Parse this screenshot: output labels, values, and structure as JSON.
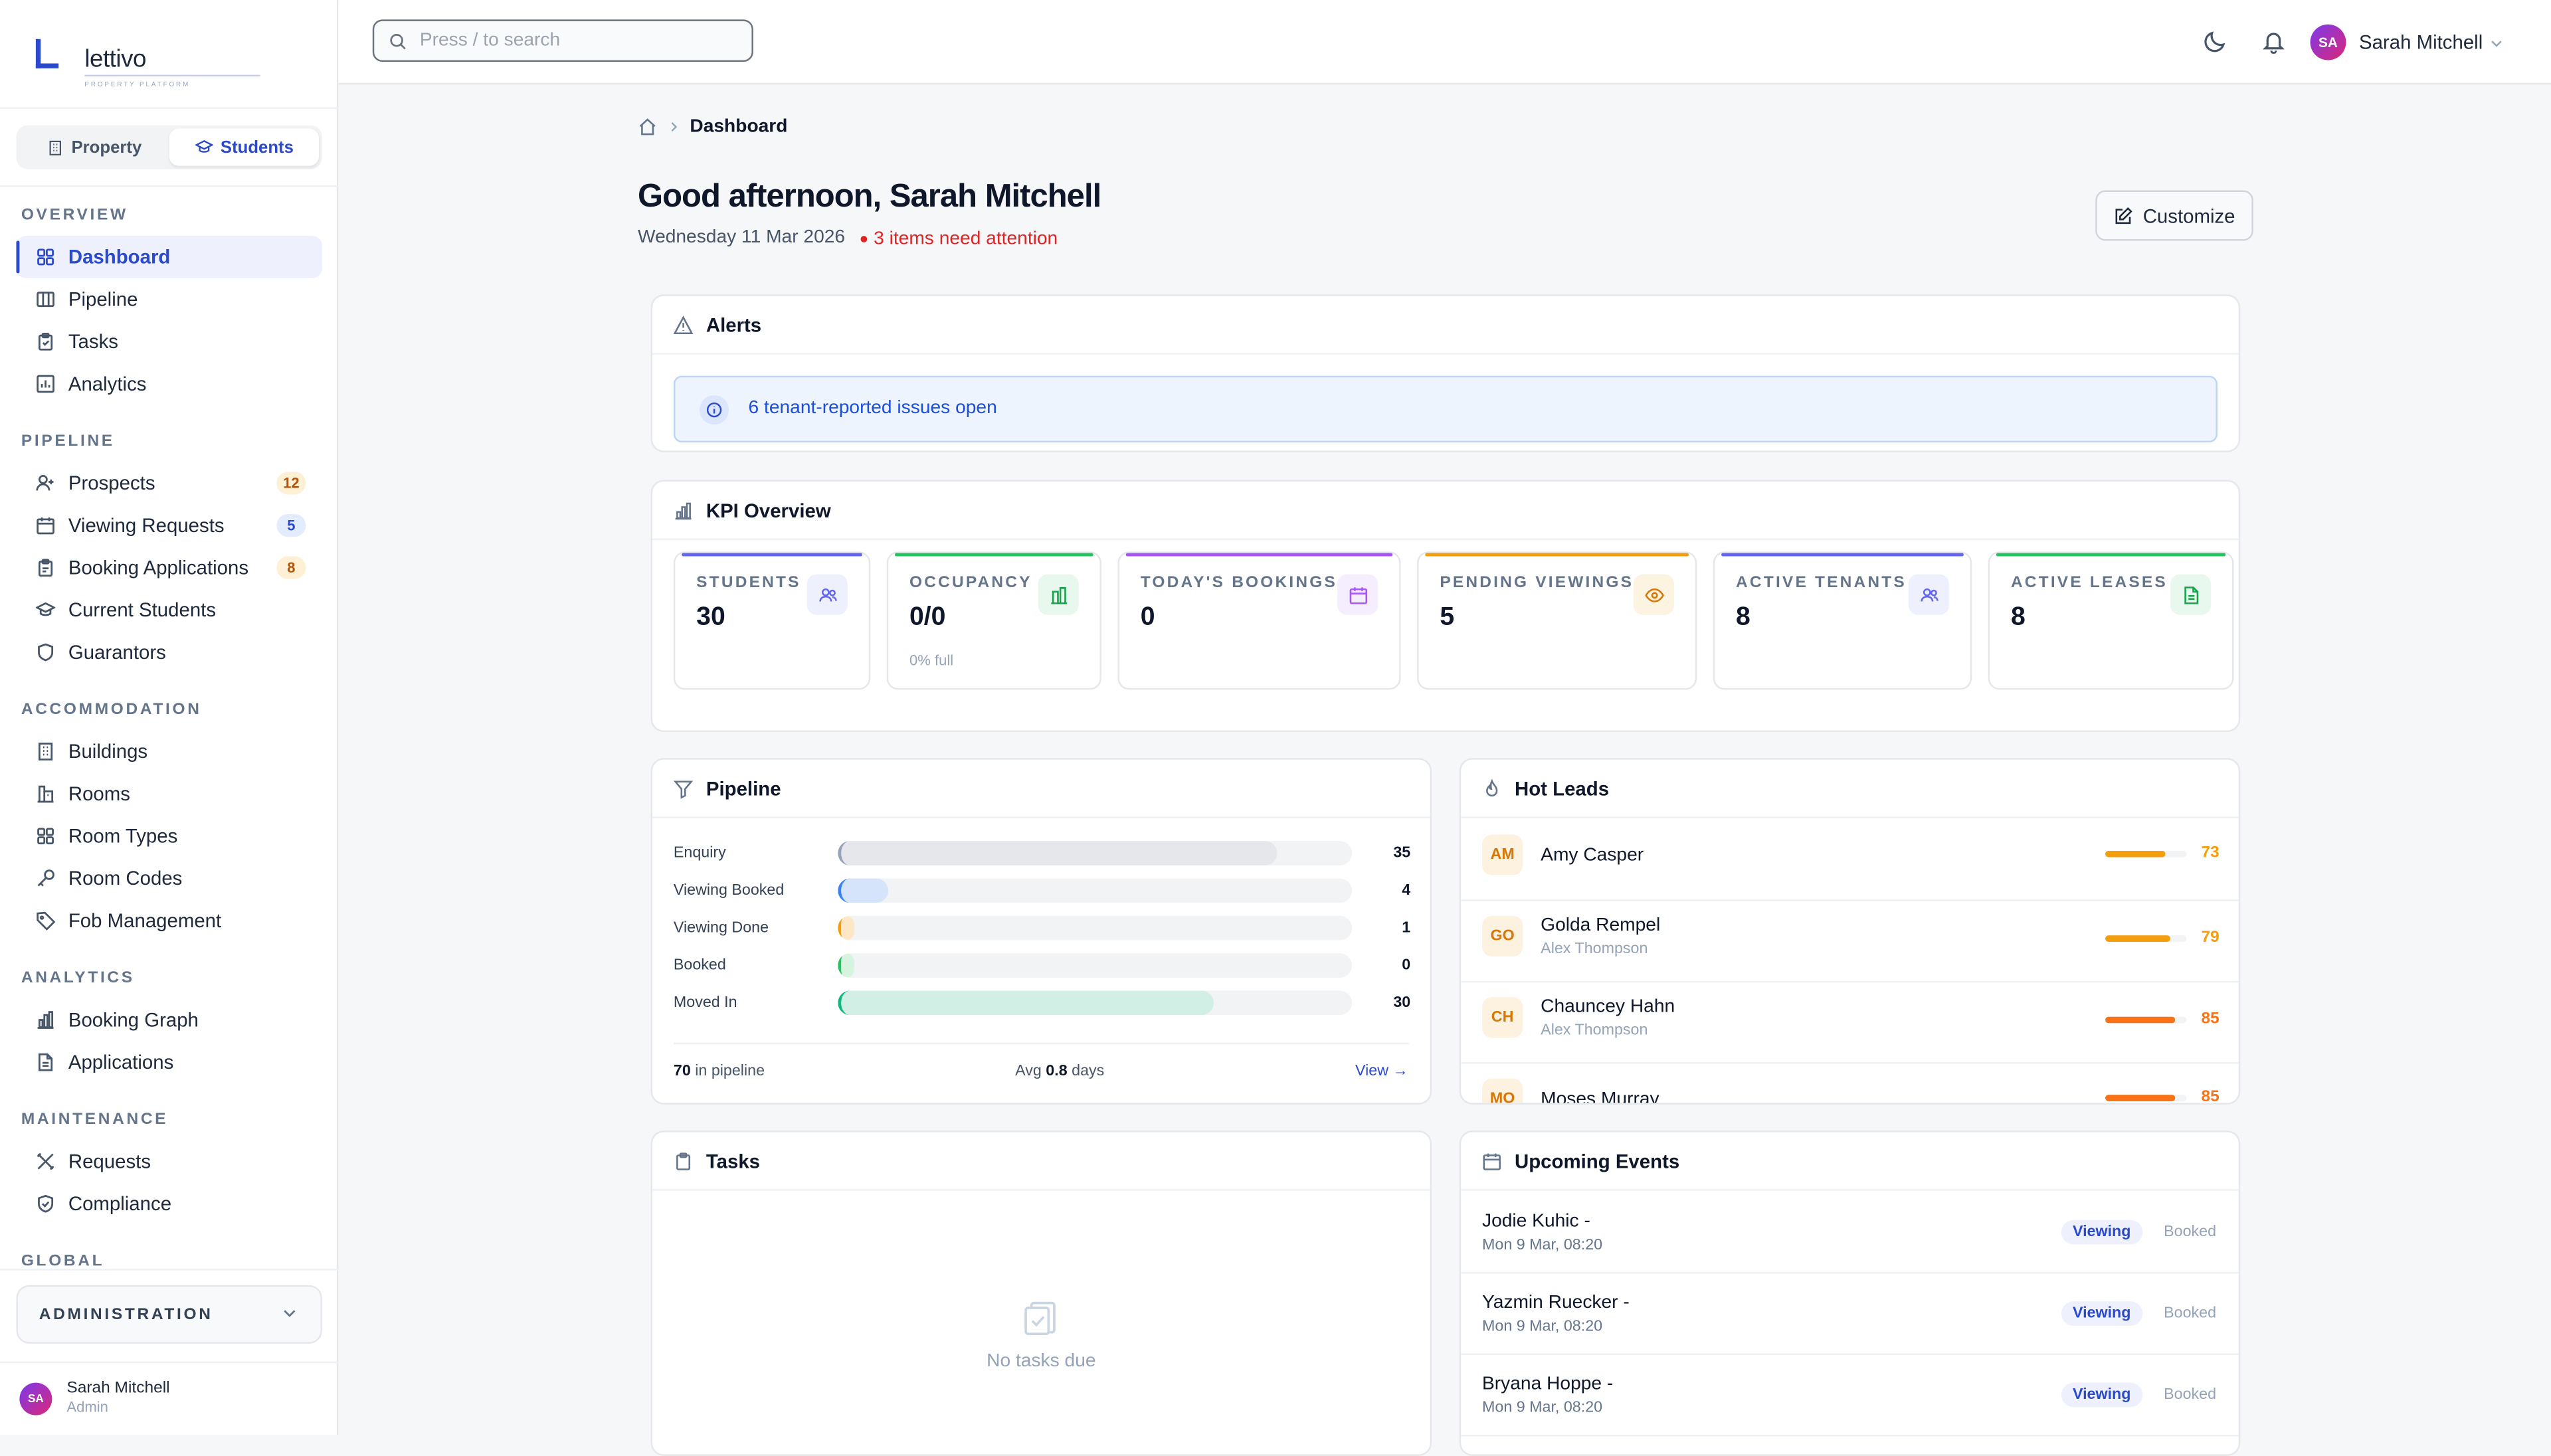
{
  "app": {
    "logo_word": "lettivo",
    "logo_tagline": "PROPERTY PLATFORM",
    "accent": "#2b4acb"
  },
  "mode_switch": {
    "property": "Property",
    "students": "Students",
    "active": "Students"
  },
  "nav": {
    "overview": {
      "title": "OVERVIEW",
      "items": [
        {
          "label": "Dashboard",
          "icon": "grid-icon"
        },
        {
          "label": "Pipeline",
          "icon": "columns-icon"
        },
        {
          "label": "Tasks",
          "icon": "clipboard-icon"
        },
        {
          "label": "Analytics",
          "icon": "chart-icon"
        }
      ]
    },
    "pipeline": {
      "title": "PIPELINE",
      "items": [
        {
          "label": "Prospects",
          "badge": "12",
          "icon": "user-plus-icon"
        },
        {
          "label": "Viewing Requests",
          "badge": "5",
          "icon": "calendar-icon"
        },
        {
          "label": "Booking Applications",
          "badge": "8",
          "icon": "clipboard-icon"
        },
        {
          "label": "Current Students",
          "icon": "graduation-cap-icon"
        },
        {
          "label": "Guarantors",
          "icon": "shield-icon"
        }
      ]
    },
    "accommodation": {
      "title": "ACCOMMODATION",
      "items": [
        {
          "label": "Buildings",
          "icon": "building-icon"
        },
        {
          "label": "Rooms",
          "icon": "door-icon"
        },
        {
          "label": "Room Types",
          "icon": "grid-icon"
        },
        {
          "label": "Room Codes",
          "icon": "key-icon"
        },
        {
          "label": "Fob Management",
          "icon": "tag-icon"
        }
      ]
    },
    "analytics": {
      "title": "ANALYTICS",
      "items": [
        {
          "label": "Booking Graph",
          "icon": "bar-chart-icon"
        },
        {
          "label": "Applications",
          "icon": "file-icon"
        }
      ]
    },
    "maintenance": {
      "title": "MAINTENANCE",
      "items": [
        {
          "label": "Requests",
          "icon": "tools-icon"
        },
        {
          "label": "Compliance",
          "icon": "shield-check-icon"
        }
      ]
    },
    "more_title": "GLOBAL"
  },
  "admin": {
    "label": "ADMINISTRATION"
  },
  "user": {
    "name": "Sarah Mitchell",
    "initials": "SA",
    "role": "Admin"
  },
  "search": {
    "placeholder": "Press / to search",
    "value": ""
  },
  "breadcrumb": {
    "current": "Dashboard"
  },
  "greeting": {
    "title": "Good afternoon, Sarah Mitchell",
    "date": "Wednesday 11 Mar 2026",
    "attention": "3 items need attention",
    "customize": "Customize"
  },
  "alerts": {
    "title": "Alerts",
    "items": [
      {
        "text": "6 tenant-reported issues open"
      }
    ]
  },
  "kpi": {
    "title": "KPI Overview",
    "cards": [
      {
        "label": "STUDENTS",
        "value": "30",
        "sub": "",
        "color": "#6366f1",
        "icon": "users-icon"
      },
      {
        "label": "OCCUPANCY",
        "value": "0/0",
        "sub": "0% full",
        "color": "#22c55e",
        "icon": "building-chart-icon"
      },
      {
        "label": "TODAY'S BOOKINGS",
        "value": "0",
        "sub": "",
        "color": "#a855f7",
        "icon": "calendar-icon"
      },
      {
        "label": "PENDING VIEWINGS",
        "value": "5",
        "sub": "",
        "color": "#f59e0b",
        "icon": "eye-icon"
      },
      {
        "label": "ACTIVE TENANTS",
        "value": "8",
        "sub": "",
        "color": "#6366f1",
        "icon": "users-icon"
      },
      {
        "label": "ACTIVE LEASES",
        "value": "8",
        "sub": "",
        "color": "#22c55e",
        "icon": "file-icon"
      }
    ]
  },
  "pipeline": {
    "title": "Pipeline",
    "max": 35,
    "stages": [
      {
        "label": "Enquiry",
        "value": 35,
        "color": "#94a3b8",
        "fill": "#e5e7eb"
      },
      {
        "label": "Viewing Booked",
        "value": 4,
        "color": "#3b82f6",
        "fill": "#d6e4fb"
      },
      {
        "label": "Viewing Done",
        "value": 1,
        "color": "#f59e0b",
        "fill": "#fde7c7"
      },
      {
        "label": "Booked",
        "value": 0,
        "color": "#22c55e",
        "fill": "#d5f3df"
      },
      {
        "label": "Moved In",
        "value": 30,
        "color": "#10b981",
        "fill": "#d1efe4"
      }
    ],
    "total": "70",
    "total_suffix": " in pipeline",
    "avg_prefix": "Avg ",
    "avg": "0.8",
    "avg_suffix": " days",
    "view_link": "View →"
  },
  "hot_leads": {
    "title": "Hot Leads",
    "items": [
      {
        "initials": "AM",
        "name": "Amy Casper",
        "agent": "",
        "score": 73,
        "color": "#f59e0b"
      },
      {
        "initials": "GO",
        "name": "Golda Rempel",
        "agent": "Alex Thompson",
        "score": 79,
        "color": "#f59e0b"
      },
      {
        "initials": "CH",
        "name": "Chauncey Hahn",
        "agent": "Alex Thompson",
        "score": 85,
        "color": "#f97316"
      },
      {
        "initials": "MO",
        "name": "Moses Murray",
        "agent": "",
        "score": 85,
        "color": "#f97316"
      }
    ]
  },
  "tasks": {
    "title": "Tasks",
    "empty": "No tasks due"
  },
  "events": {
    "title": "Upcoming Events",
    "items": [
      {
        "name": "Jodie Kuhic -",
        "time": "Mon 9 Mar, 08:20",
        "type": "Viewing",
        "status": "Booked"
      },
      {
        "name": "Yazmin Ruecker -",
        "time": "Mon 9 Mar, 08:20",
        "type": "Viewing",
        "status": "Booked"
      },
      {
        "name": "Bryana Hoppe -",
        "time": "Mon 9 Mar, 08:20",
        "type": "Viewing",
        "status": "Booked"
      }
    ]
  }
}
